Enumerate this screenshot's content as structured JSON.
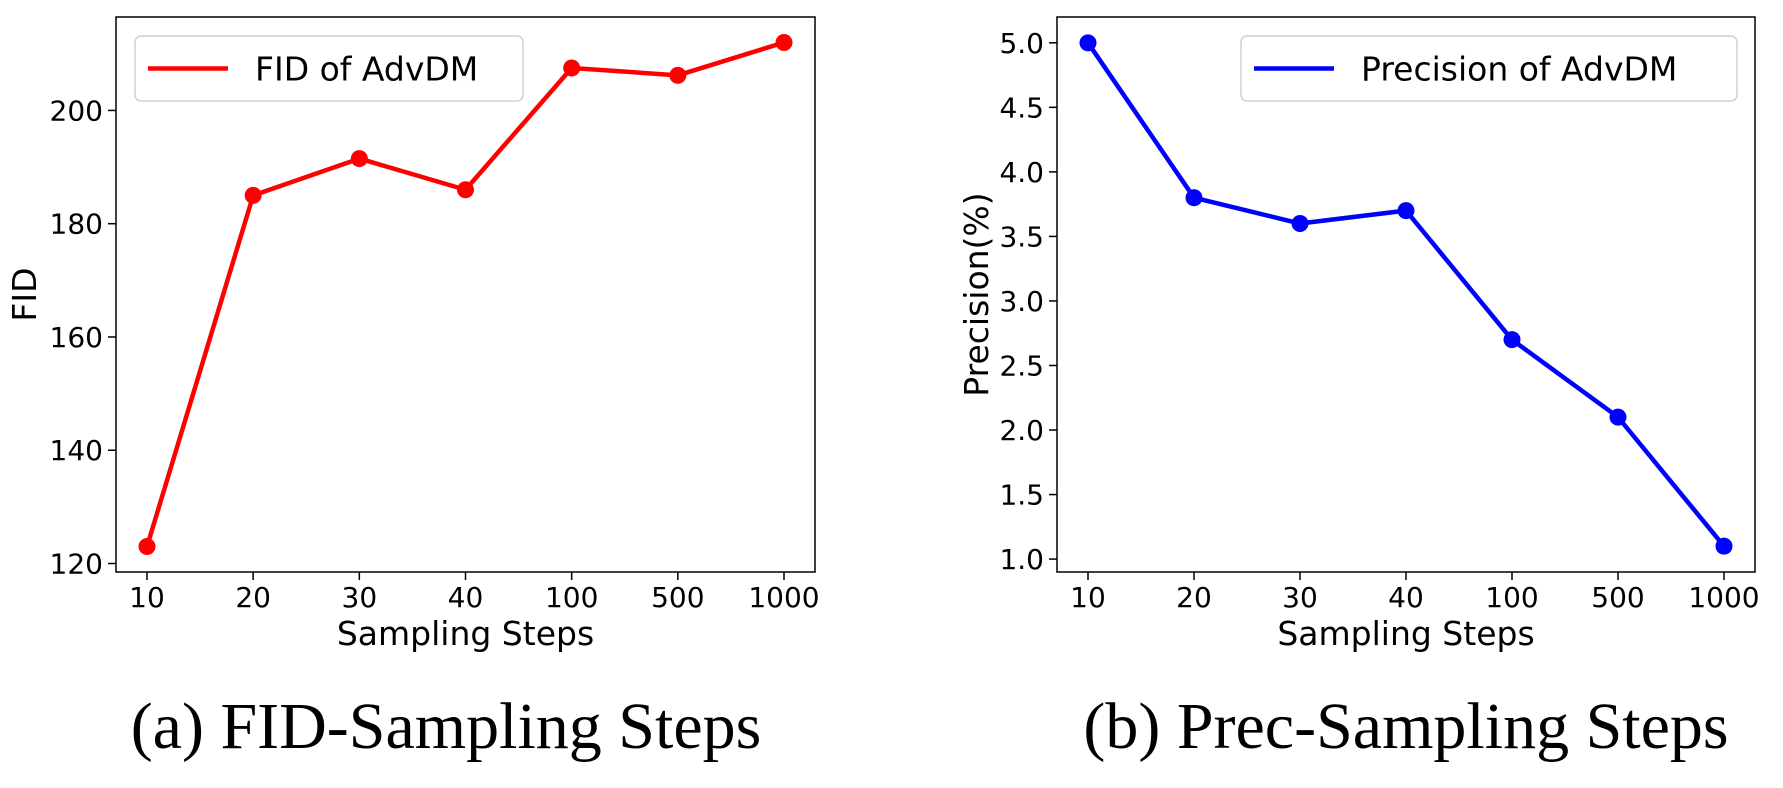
{
  "chart_data": [
    {
      "type": "line",
      "caption": "(a) FID-Sampling Steps",
      "xlabel": "Sampling Steps",
      "ylabel": "FID",
      "categories": [
        "10",
        "20",
        "30",
        "40",
        "100",
        "500",
        "1000"
      ],
      "series": [
        {
          "name": "FID of AdvDM",
          "color": "#ff0000",
          "values": [
            123,
            185,
            191.5,
            186,
            207.5,
            206.2,
            212
          ]
        }
      ],
      "yticks": [
        "120",
        "140",
        "160",
        "180",
        "200"
      ],
      "ylim": [
        118.5,
        216.5
      ],
      "grid": false,
      "legend_position": "top-left"
    },
    {
      "type": "line",
      "caption": "(b) Prec-Sampling Steps",
      "xlabel": "Sampling Steps",
      "ylabel": "Precision(%)",
      "categories": [
        "10",
        "20",
        "30",
        "40",
        "100",
        "500",
        "1000"
      ],
      "series": [
        {
          "name": "Precision of AdvDM",
          "color": "#0000ff",
          "values": [
            5.0,
            3.8,
            3.6,
            3.7,
            2.7,
            2.1,
            1.1
          ]
        }
      ],
      "yticks": [
        "1.0",
        "1.5",
        "2.0",
        "2.5",
        "3.0",
        "3.5",
        "4.0",
        "4.5",
        "5.0"
      ],
      "ylim": [
        0.9,
        5.2
      ],
      "grid": false,
      "legend_position": "top-right"
    }
  ]
}
